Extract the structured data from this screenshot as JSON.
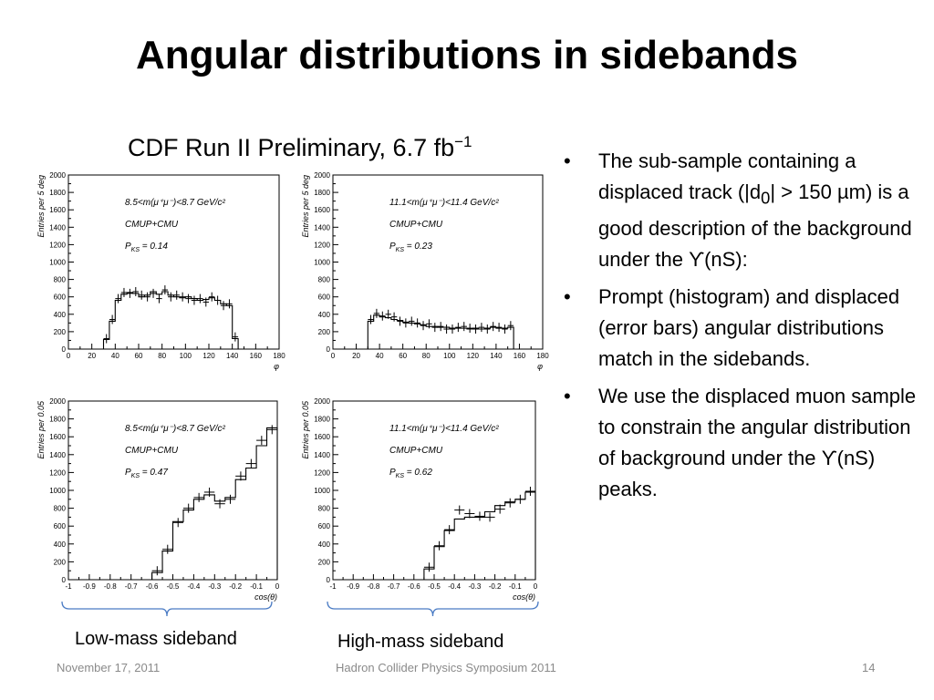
{
  "slide": {
    "title": "Angular distributions in sidebands",
    "cdf_label": "CDF Run II  Preliminary, 6.7 fb",
    "cdf_label_sup": "−1",
    "bullets": [
      [
        "The sub-sample containing a displaced track (|d",
        "0",
        "| > 150 µm) is a good description of the background under the ϒ(nS):"
      ],
      [
        "Prompt (histogram) and displaced (error bars) angular distributions match in the sidebands."
      ],
      [
        "We use the displaced muon sample to constrain the angular distribution of background under the ϒ(nS) peaks."
      ]
    ],
    "sideband_labels": [
      "Low-mass sideband",
      "High-mass sideband"
    ],
    "footer": {
      "date": "November 17, 2011",
      "event": "Hadron Collider Physics Symposium  2011",
      "page": "14"
    }
  },
  "chart_data": [
    {
      "type": "bar",
      "xlabel": "φ",
      "ylabel": "Entries per 5 deg",
      "xlim": [
        0,
        180
      ],
      "ylim": [
        0,
        2000
      ],
      "x_ticks": [
        "0",
        "20",
        "40",
        "60",
        "80",
        "100",
        "120",
        "140",
        "160",
        "180"
      ],
      "y_ticks": [
        "0",
        "200",
        "400",
        "600",
        "800",
        "1000",
        "1200",
        "1400",
        "1600",
        "1800",
        "2000"
      ],
      "annotations": [
        "8.5<m(μ⁺μ⁻)<8.7 GeV/c²",
        "CMUP+CMU",
        "P_KS =  0.14"
      ],
      "bin_width": 5,
      "x": [
        25,
        30,
        35,
        40,
        45,
        50,
        55,
        60,
        65,
        70,
        75,
        80,
        85,
        90,
        95,
        100,
        105,
        110,
        115,
        120,
        125,
        130,
        135,
        140,
        145,
        150,
        155
      ],
      "series": [
        {
          "values": [
            0,
            110,
            320,
            560,
            630,
            650,
            640,
            600,
            620,
            660,
            630,
            660,
            620,
            600,
            590,
            600,
            580,
            560,
            570,
            590,
            560,
            520,
            500,
            120,
            0,
            0,
            0
          ]
        },
        {
          "values": [
            0,
            120,
            340,
            580,
            650,
            640,
            660,
            620,
            600,
            640,
            580,
            680,
            600,
            620,
            600,
            580,
            560,
            580,
            540,
            600,
            560,
            500,
            520,
            140,
            0,
            0,
            0
          ]
        }
      ]
    },
    {
      "type": "bar",
      "xlabel": "φ",
      "ylabel": "Entries per 5 deg",
      "xlim": [
        0,
        180
      ],
      "ylim": [
        0,
        2000
      ],
      "x_ticks": [
        "0",
        "20",
        "40",
        "60",
        "80",
        "100",
        "120",
        "140",
        "160",
        "180"
      ],
      "y_ticks": [
        "0",
        "200",
        "400",
        "600",
        "800",
        "1000",
        "1200",
        "1400",
        "1600",
        "1800",
        "2000"
      ],
      "annotations": [
        "11.1<m(μ⁺μ⁻)<11.4 GeV/c²",
        "CMUP+CMU",
        "P_KS =  0.23"
      ],
      "bin_width": 5,
      "x": [
        25,
        30,
        35,
        40,
        45,
        50,
        55,
        60,
        65,
        70,
        75,
        80,
        85,
        90,
        95,
        100,
        105,
        110,
        115,
        120,
        125,
        130,
        135,
        140,
        145,
        150,
        155
      ],
      "series": [
        {
          "values": [
            0,
            320,
            390,
            370,
            360,
            340,
            330,
            310,
            300,
            290,
            280,
            260,
            260,
            250,
            250,
            240,
            240,
            240,
            230,
            240,
            230,
            240,
            250,
            240,
            240,
            250,
            0
          ]
        },
        {
          "values": [
            0,
            340,
            410,
            380,
            400,
            370,
            320,
            300,
            320,
            300,
            270,
            290,
            250,
            260,
            230,
            230,
            250,
            260,
            240,
            230,
            250,
            230,
            260,
            250,
            230,
            270,
            0
          ]
        }
      ]
    },
    {
      "type": "bar",
      "xlabel": "cos(θ)",
      "ylabel": "Entries per 0.05",
      "xlim": [
        -1,
        0
      ],
      "ylim": [
        0,
        2000
      ],
      "x_ticks": [
        "-1",
        "-0.9",
        "-0.8",
        "-0.7",
        "-0.6",
        "-0.5",
        "-0.4",
        "-0.3",
        "-0.2",
        "-0.1",
        "0"
      ],
      "y_ticks": [
        "0",
        "200",
        "400",
        "600",
        "800",
        "1000",
        "1200",
        "1400",
        "1600",
        "1800",
        "2000"
      ],
      "annotations": [
        "8.5<m(μ⁺μ⁻)<8.7 GeV/c²",
        "CMUP+CMU",
        "P_KS =  0.47"
      ],
      "bin_width": 0.05,
      "x": [
        -0.65,
        -0.6,
        -0.55,
        -0.5,
        -0.45,
        -0.4,
        -0.35,
        -0.3,
        -0.25,
        -0.2,
        -0.15,
        -0.1,
        -0.05
      ],
      "series": [
        {
          "values": [
            0,
            80,
            320,
            650,
            780,
            900,
            950,
            880,
            920,
            1120,
            1250,
            1500,
            1700
          ]
        },
        {
          "values": [
            0,
            100,
            340,
            640,
            800,
            920,
            980,
            850,
            900,
            1160,
            1300,
            1560,
            1680
          ]
        }
      ]
    },
    {
      "type": "bar",
      "xlabel": "cos(θ)",
      "ylabel": "Entries per 0.05",
      "xlim": [
        -1,
        0
      ],
      "ylim": [
        0,
        2000
      ],
      "x_ticks": [
        "-1",
        "-0.9",
        "-0.8",
        "-0.7",
        "-0.6",
        "-0.5",
        "-0.4",
        "-0.3",
        "-0.2",
        "-0.1",
        "0"
      ],
      "y_ticks": [
        "0",
        "200",
        "400",
        "600",
        "800",
        "1000",
        "1200",
        "1400",
        "1600",
        "1800",
        "2000"
      ],
      "annotations": [
        "11.1<m(μ⁺μ⁻)<11.4 GeV/c²",
        "CMUP+CMU",
        "P_KS =  0.62"
      ],
      "bin_width": 0.05,
      "x": [
        -0.6,
        -0.55,
        -0.5,
        -0.45,
        -0.4,
        -0.35,
        -0.3,
        -0.25,
        -0.2,
        -0.15,
        -0.1,
        -0.05
      ],
      "series": [
        {
          "values": [
            0,
            120,
            370,
            550,
            680,
            700,
            700,
            760,
            830,
            870,
            900,
            980
          ]
        },
        {
          "values": [
            0,
            140,
            380,
            560,
            780,
            740,
            710,
            700,
            790,
            860,
            900,
            990
          ]
        }
      ]
    }
  ]
}
